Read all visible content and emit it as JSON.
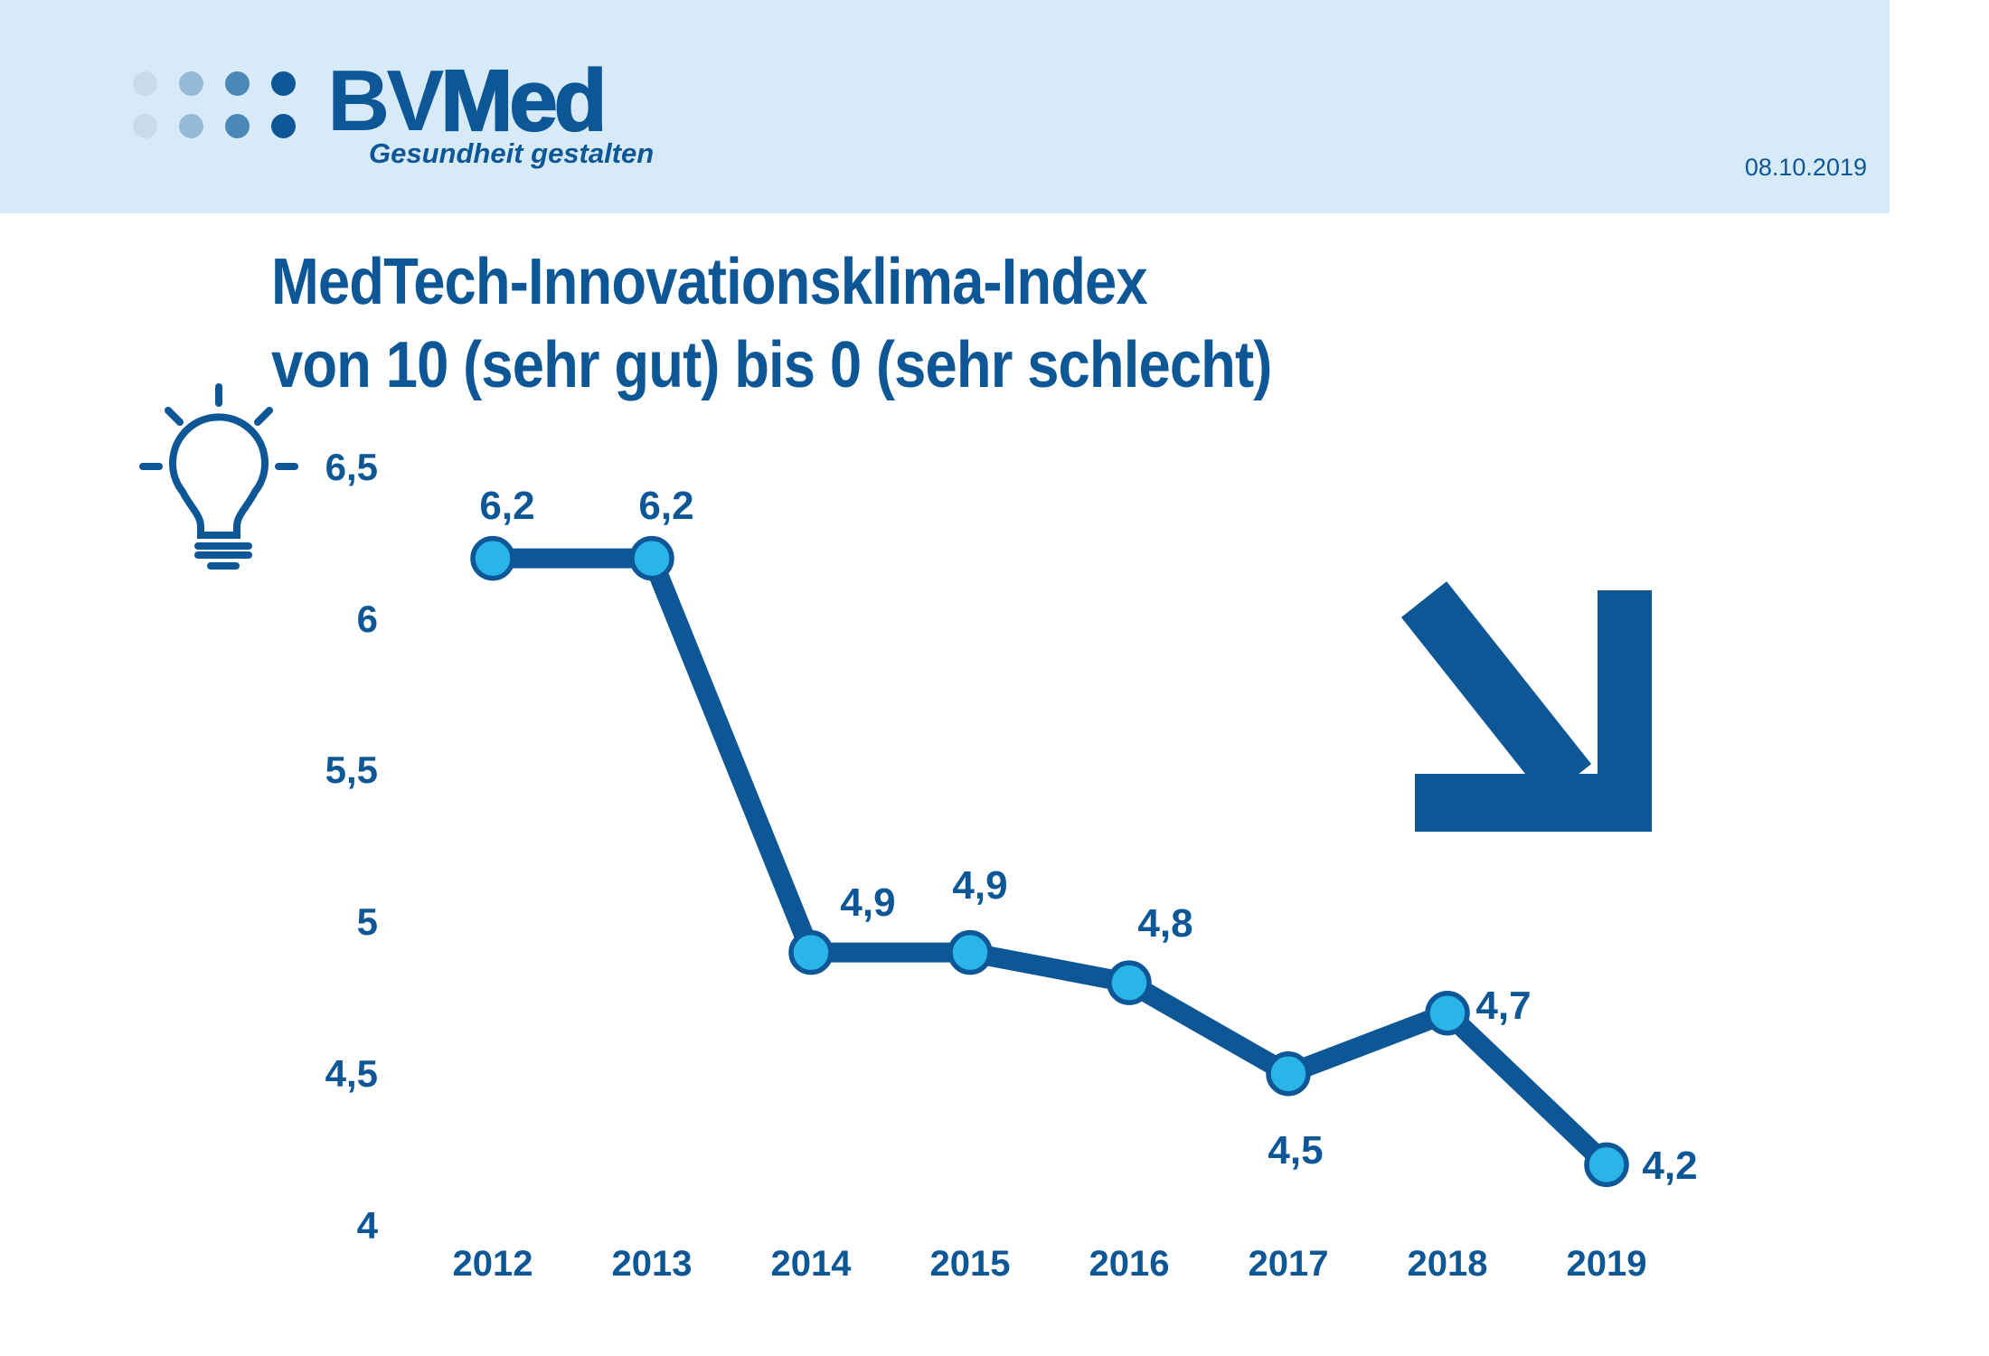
{
  "header": {
    "logo": {
      "bv": "BV",
      "med": "Med",
      "tagline": "Gesundheit gestalten",
      "dot_colors": [
        "#c9dbe9",
        "#96b9d6",
        "#4b87b7",
        "#0e5796"
      ]
    },
    "date": "08.10.2019"
  },
  "title": {
    "line1": "MedTech-Innovationsklima-Index",
    "line2": "von 10 (sehr gut) bis 0 (sehr schlecht)"
  },
  "icons": {
    "lightbulb": "lightbulb-outline-with-rays",
    "trend_arrow": "arrow-down-right"
  },
  "colors": {
    "dark_blue": "#0d5796",
    "cyan": "#29b5e8",
    "header_bg": "#d7eaf8"
  },
  "chart_data": {
    "type": "line",
    "title": "MedTech-Innovationsklima-Index von 10 (sehr gut) bis 0 (sehr schlecht)",
    "categories": [
      "2012",
      "2013",
      "2014",
      "2015",
      "2016",
      "2017",
      "2018",
      "2019"
    ],
    "series": [
      {
        "name": "MedTech-Innovationsklima-Index",
        "values": [
          6.2,
          6.2,
          4.9,
          4.9,
          4.8,
          4.5,
          4.7,
          4.2
        ],
        "labels": [
          "6,2",
          "6,2",
          "4,9",
          "4,9",
          "4,8",
          "4,5",
          "4,7",
          "4,2"
        ]
      }
    ],
    "y_axis": {
      "min": 4,
      "max": 6.5,
      "ticks": [
        {
          "label": "6,5",
          "value": 6.5
        },
        {
          "label": "6",
          "value": 6.0
        },
        {
          "label": "5,5",
          "value": 5.5
        },
        {
          "label": "5",
          "value": 5.0
        },
        {
          "label": "4,5",
          "value": 4.5
        },
        {
          "label": "4",
          "value": 4.0
        }
      ]
    },
    "grid": false,
    "legend": false
  }
}
